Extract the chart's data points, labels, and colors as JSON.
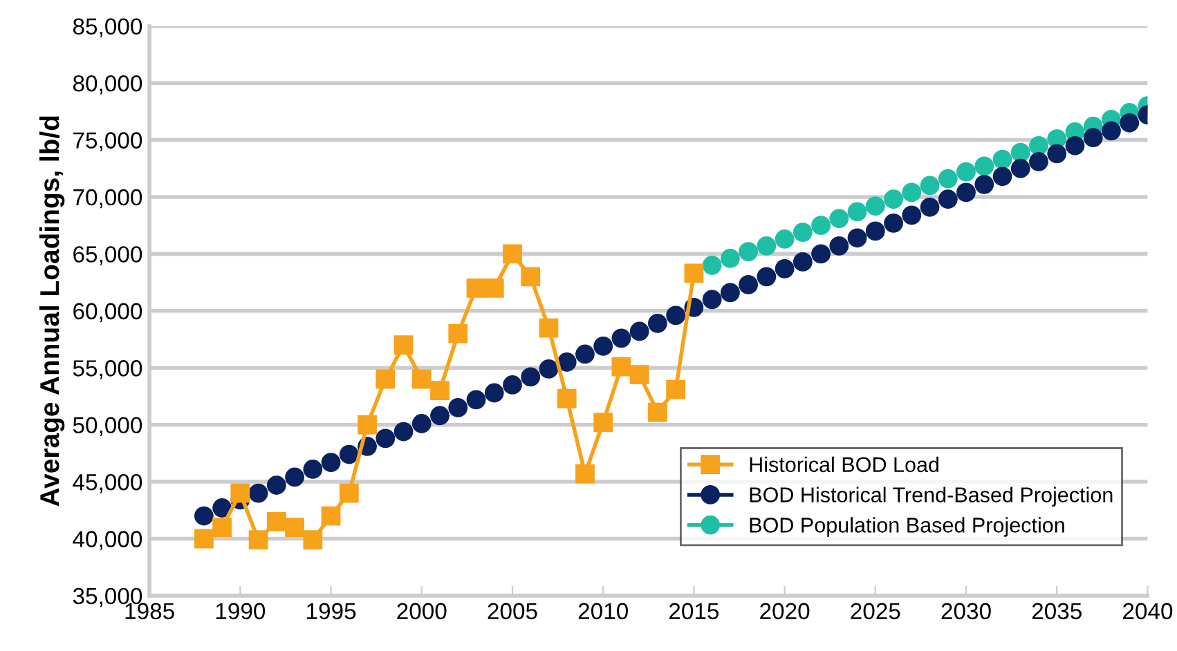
{
  "chart_data": {
    "type": "line",
    "ylabel": "Average Annual Loadings, lb/d",
    "xlim": [
      1985,
      2040
    ],
    "xticks": [
      1985,
      1990,
      1995,
      2000,
      2005,
      2010,
      2015,
      2020,
      2025,
      2030,
      2035,
      2040
    ],
    "ylim": [
      35000,
      85000
    ],
    "yticks": [
      {
        "value": 35000,
        "label": "35,000"
      },
      {
        "value": 40000,
        "label": "40,000"
      },
      {
        "value": 45000,
        "label": "45,000"
      },
      {
        "value": 50000,
        "label": "50,000"
      },
      {
        "value": 55000,
        "label": "55,000"
      },
      {
        "value": 60000,
        "label": "60,000"
      },
      {
        "value": 65000,
        "label": "65,000"
      },
      {
        "value": 70000,
        "label": "70,000"
      },
      {
        "value": 75000,
        "label": "75,000"
      },
      {
        "value": 80000,
        "label": "80,000"
      },
      {
        "value": 85000,
        "label": "85,000"
      }
    ],
    "grid": "y",
    "legend": "bottom right",
    "series": [
      {
        "name": "Historical BOD Load",
        "color": "#f7a21b",
        "marker": "square",
        "x": [
          1988,
          1989,
          1990,
          1991,
          1992,
          1993,
          1994,
          1995,
          1996,
          1997,
          1998,
          1999,
          2000,
          2001,
          2002,
          2003,
          2004,
          2005,
          2006,
          2007,
          2008,
          2009,
          2010,
          2011,
          2012,
          2013,
          2014,
          2015
        ],
        "values": [
          40000,
          41000,
          44000,
          39900,
          41500,
          41000,
          39900,
          42000,
          44000,
          50000,
          54000,
          57000,
          54000,
          53000,
          58000,
          62000,
          62000,
          65000,
          63000,
          58500,
          52300,
          45700,
          50200,
          55100,
          54400,
          51100,
          53100,
          63300
        ]
      },
      {
        "name": "BOD Historical Trend-Based Projection",
        "type": "scatter",
        "color": "#0b2260",
        "marker": "circle",
        "x": [
          1988,
          1989,
          1990,
          1991,
          1992,
          1993,
          1994,
          1995,
          1996,
          1997,
          1998,
          1999,
          2000,
          2001,
          2002,
          2003,
          2004,
          2005,
          2006,
          2007,
          2008,
          2009,
          2010,
          2011,
          2012,
          2013,
          2014,
          2015,
          2016,
          2017,
          2018,
          2019,
          2020,
          2021,
          2022,
          2023,
          2024,
          2025,
          2026,
          2027,
          2028,
          2029,
          2030,
          2031,
          2032,
          2033,
          2034,
          2035,
          2036,
          2037,
          2038,
          2039,
          2040
        ],
        "values": [
          42000,
          42700,
          43400,
          44000,
          44700,
          45400,
          46100,
          46700,
          47400,
          48100,
          48800,
          49400,
          50100,
          50800,
          51500,
          52200,
          52800,
          53500,
          54200,
          54900,
          55500,
          56200,
          56900,
          57600,
          58200,
          58900,
          59600,
          60300,
          61000,
          61600,
          62300,
          63000,
          63700,
          64300,
          65000,
          65700,
          66400,
          67000,
          67700,
          68400,
          69100,
          69800,
          70400,
          71100,
          71800,
          72500,
          73100,
          73800,
          74500,
          75200,
          75800,
          76500,
          77200
        ]
      },
      {
        "name": "BOD Population Based Projection",
        "type": "scatter",
        "color": "#1fbfa5",
        "marker": "circle",
        "x": [
          2016,
          2017,
          2018,
          2019,
          2020,
          2021,
          2022,
          2023,
          2024,
          2025,
          2026,
          2027,
          2028,
          2029,
          2030,
          2031,
          2032,
          2033,
          2034,
          2035,
          2036,
          2037,
          2038,
          2039,
          2040
        ],
        "values": [
          64000,
          64600,
          65200,
          65700,
          66300,
          66900,
          67500,
          68100,
          68700,
          69200,
          69800,
          70400,
          71000,
          71600,
          72200,
          72700,
          73300,
          73900,
          74500,
          75100,
          75700,
          76200,
          76800,
          77400,
          78000
        ]
      }
    ]
  }
}
